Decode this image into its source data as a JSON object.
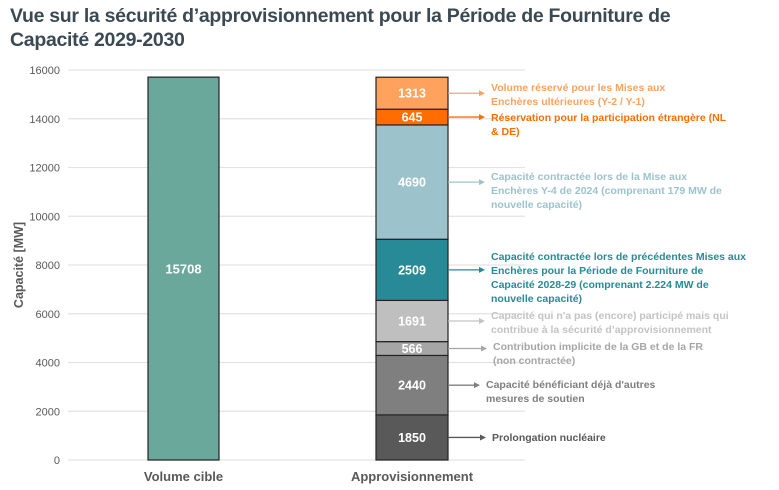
{
  "title": "Vue sur la sécurité d’approvisionnement pour la Période de Fourniture de Capacité 2029-2030",
  "chart_data": {
    "type": "bar",
    "stacked": true,
    "title": "Vue sur la sécurité d’approvisionnement pour la Période de Fourniture de Capacité 2029-2030",
    "xlabel": "",
    "ylabel": "Capacité [MW]",
    "ylim": [
      0,
      16000
    ],
    "yticks": [
      0,
      2000,
      4000,
      6000,
      8000,
      10000,
      12000,
      14000,
      16000
    ],
    "grid": true,
    "categories": [
      "Volume cible",
      "Approvisionnement"
    ],
    "target": {
      "category": "Volume cible",
      "value": 15708,
      "color": "#6aa89c"
    },
    "series": [
      {
        "name": "Prolongation nucléaire",
        "value": 1850,
        "color": "#595959",
        "label_color": "#595959"
      },
      {
        "name": "Capacité bénéficiant déjà d'autres mesures de soutien",
        "value": 2440,
        "color": "#7f7f7f",
        "label_color": "#7f7f7f"
      },
      {
        "name": "Contribution implicite de la GB et de la FR (non contractée)",
        "value": 566,
        "color": "#a6a6a6",
        "label_color": "#a6a6a6"
      },
      {
        "name": "Capacité qui n'a pas (encore) participé mais qui contribue à la sécurité d’approvisionnement",
        "value": 1691,
        "color": "#bfbfbf",
        "label_color": "#c3c3c3"
      },
      {
        "name": "Capacité contractée lors de précédentes Mises aux Enchères pour la Période de Fourniture de Capacité 2028-29 (comprenant 2.224 MW de nouvelle capacité)",
        "value": 2509,
        "color": "#278a96",
        "label_color": "#278a96"
      },
      {
        "name": "Capacité contractée lors de la Mise aux Enchères Y-4 de 2024 (comprenant 179 MW de nouvelle capacité)",
        "value": 4690,
        "color": "#9cc3cc",
        "label_color": "#9cc3cc"
      },
      {
        "name": "Réservation pour la participation étrangère (NL & DE)",
        "value": 645,
        "color": "#ff6d00",
        "label_color": "#ff6d00"
      },
      {
        "name": "Volume réservé pour les Mises aux Enchères ultérieures (Y-2 / Y-1)",
        "value": 1313,
        "color": "#ffa25e",
        "label_color": "#ffa25e"
      }
    ],
    "annotation_lines": [
      [
        "Prolongation nucléaire"
      ],
      [
        "Capacité bénéficiant déjà d'autres",
        "mesures de soutien"
      ],
      [
        "Contribution implicite de la GB et de la FR",
        "(non contractée)"
      ],
      [
        "Capacité qui n'a pas (encore) participé mais qui",
        "contribue à la sécurité d’approvisionnement"
      ],
      [
        "Capacité contractée lors de précédentes Mises aux",
        "Enchères pour la Période de Fourniture de",
        "Capacité 2028-29 (comprenant 2.224 MW de",
        "nouvelle capacité)"
      ],
      [
        "Capacité contractée lors de la Mise aux",
        "Enchères Y-4 de 2024 (comprenant 179 MW de",
        "nouvelle capacité)"
      ],
      [
        "Réservation pour la participation étrangère (NL",
        "& DE)"
      ],
      [
        "Volume réservé pour les Mises aux",
        "Enchères ultérieures (Y-2 / Y-1)"
      ]
    ]
  }
}
